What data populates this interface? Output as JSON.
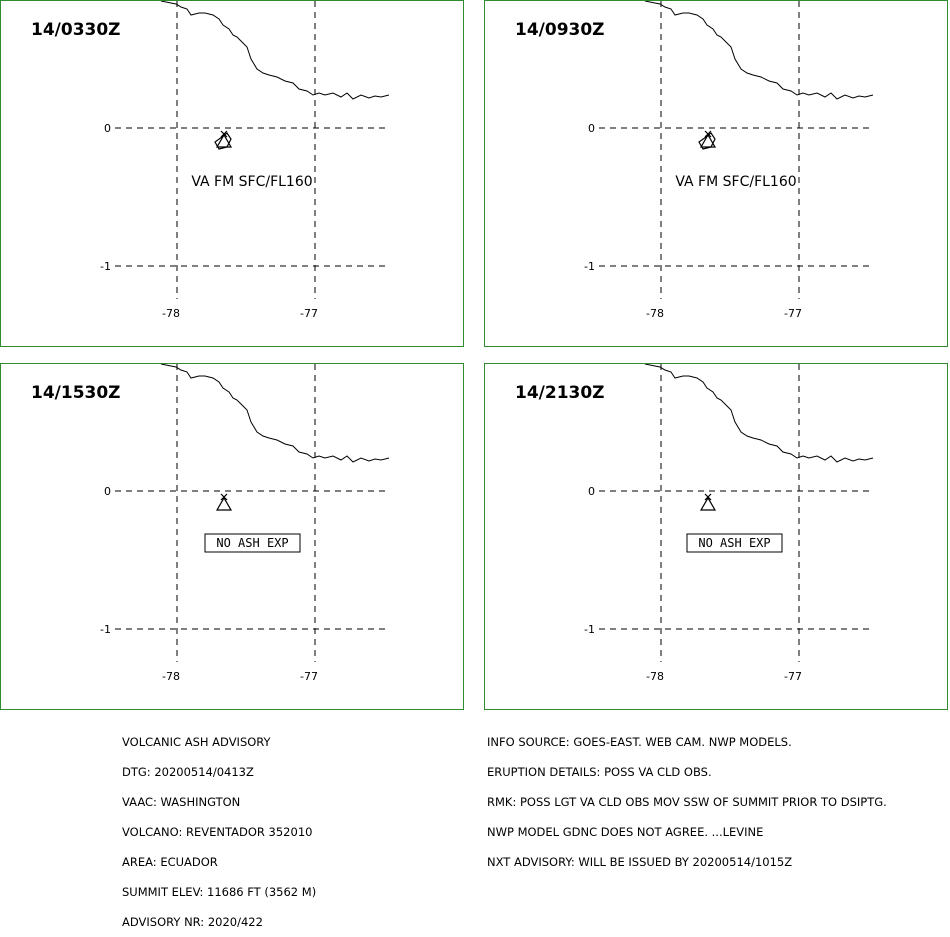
{
  "panels": [
    {
      "time": "14/0330Z",
      "lat_labels": [
        "0",
        "-1"
      ],
      "lon_labels": [
        "-78",
        "-77"
      ],
      "text": "VA FM SFC/FL160",
      "boxed": false,
      "plume": true
    },
    {
      "time": "14/0930Z",
      "lat_labels": [
        "0",
        "-1"
      ],
      "lon_labels": [
        "-78",
        "-77"
      ],
      "text": "VA FM SFC/FL160",
      "boxed": false,
      "plume": true
    },
    {
      "time": "14/1530Z",
      "lat_labels": [
        "0",
        "-1"
      ],
      "lon_labels": [
        "-78",
        "-77"
      ],
      "text": "NO ASH EXP",
      "boxed": true,
      "plume": false
    },
    {
      "time": "14/2130Z",
      "lat_labels": [
        "0",
        "-1"
      ],
      "lon_labels": [
        "-78",
        "-77"
      ],
      "text": "NO ASH EXP",
      "boxed": true,
      "plume": false
    }
  ],
  "advisory_left": [
    "VOLCANIC ASH ADVISORY",
    "DTG: 20200514/0413Z",
    "VAAC: WASHINGTON",
    "VOLCANO: REVENTADOR 352010",
    "AREA: ECUADOR",
    "SUMMIT ELEV: 11686 FT (3562 M)",
    "ADVISORY NR: 2020/422"
  ],
  "advisory_right": [
    "INFO SOURCE: GOES-EAST. WEB CAM. NWP MODELS.",
    "ERUPTION DETAILS: POSS VA CLD OBS.",
    "RMK: POSS LGT VA CLD OBS MOV SSW OF SUMMIT PRIOR TO DSIPTG.",
    "NWP MODEL GDNC DOES NOT AGREE. ...LEVINE",
    "NXT ADVISORY: WILL BE ISSUED BY 20200514/1015Z"
  ],
  "colors": {
    "border": "#2e8b2e",
    "lines": "#000000",
    "background": "#ffffff"
  },
  "icons": {
    "volcano": "volcano-icon"
  }
}
